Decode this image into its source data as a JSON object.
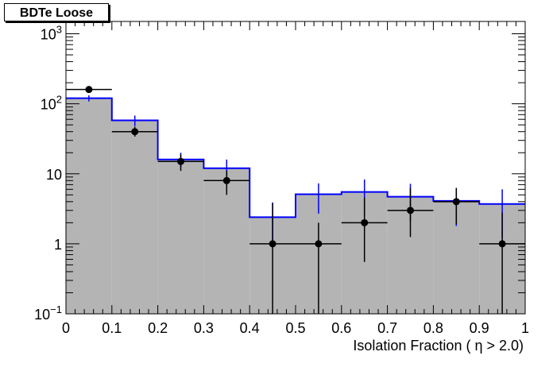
{
  "chart_data": {
    "type": "bar",
    "title": "BDTe Loose",
    "xlabel": "Isolation Fraction ( η > 2.0)",
    "ylabel": "",
    "xlim": [
      0,
      1
    ],
    "ylim": [
      0.1,
      1500
    ],
    "yscale": "log",
    "grid": false,
    "x_ticks": [
      "0",
      "0.1",
      "0.2",
      "0.3",
      "0.4",
      "0.5",
      "0.6",
      "0.7",
      "0.8",
      "0.9",
      "1"
    ],
    "y_ticks": [
      {
        "value": 0.1,
        "base": "10",
        "exp": "−1",
        "text": ""
      },
      {
        "value": 1,
        "base": "",
        "exp": "",
        "text": "1"
      },
      {
        "value": 10,
        "base": "",
        "exp": "",
        "text": "10"
      },
      {
        "value": 100,
        "base": "10",
        "exp": "2",
        "text": ""
      },
      {
        "value": 1000,
        "base": "10",
        "exp": "3",
        "text": ""
      }
    ],
    "bin_edges": [
      0,
      0.1,
      0.2,
      0.3,
      0.4,
      0.5,
      0.6,
      0.7,
      0.8,
      0.9,
      1.0
    ],
    "series": [
      {
        "kind": "histogram",
        "fill": "#b4b4b4",
        "line": "#0000ff",
        "values": [
          120,
          58,
          16,
          12,
          2.4,
          5.1,
          5.5,
          4.7,
          4.1,
          3.7
        ],
        "err_low": [
          108,
          48,
          12.5,
          9.2,
          0.9,
          2.7,
          2.6,
          2.1,
          1.8,
          1.2
        ],
        "err_high": [
          132,
          68,
          20,
          16,
          3.9,
          7.3,
          8.3,
          7.2,
          6.2,
          6.0
        ]
      },
      {
        "kind": "points",
        "color": "#000000",
        "x": [
          0.05,
          0.15,
          0.25,
          0.35,
          0.45,
          0.55,
          0.65,
          0.75,
          0.85,
          0.95
        ],
        "values": [
          160,
          40,
          15,
          8,
          1,
          1,
          2,
          3,
          4,
          1
        ],
        "err_low": [
          148,
          34,
          11,
          5,
          0.1,
          0.1,
          0.55,
          1.25,
          1.9,
          0.1
        ],
        "err_high": [
          172,
          47,
          19,
          11,
          3.8,
          2.0,
          4.6,
          6.3,
          6.3,
          2.8
        ]
      }
    ]
  }
}
